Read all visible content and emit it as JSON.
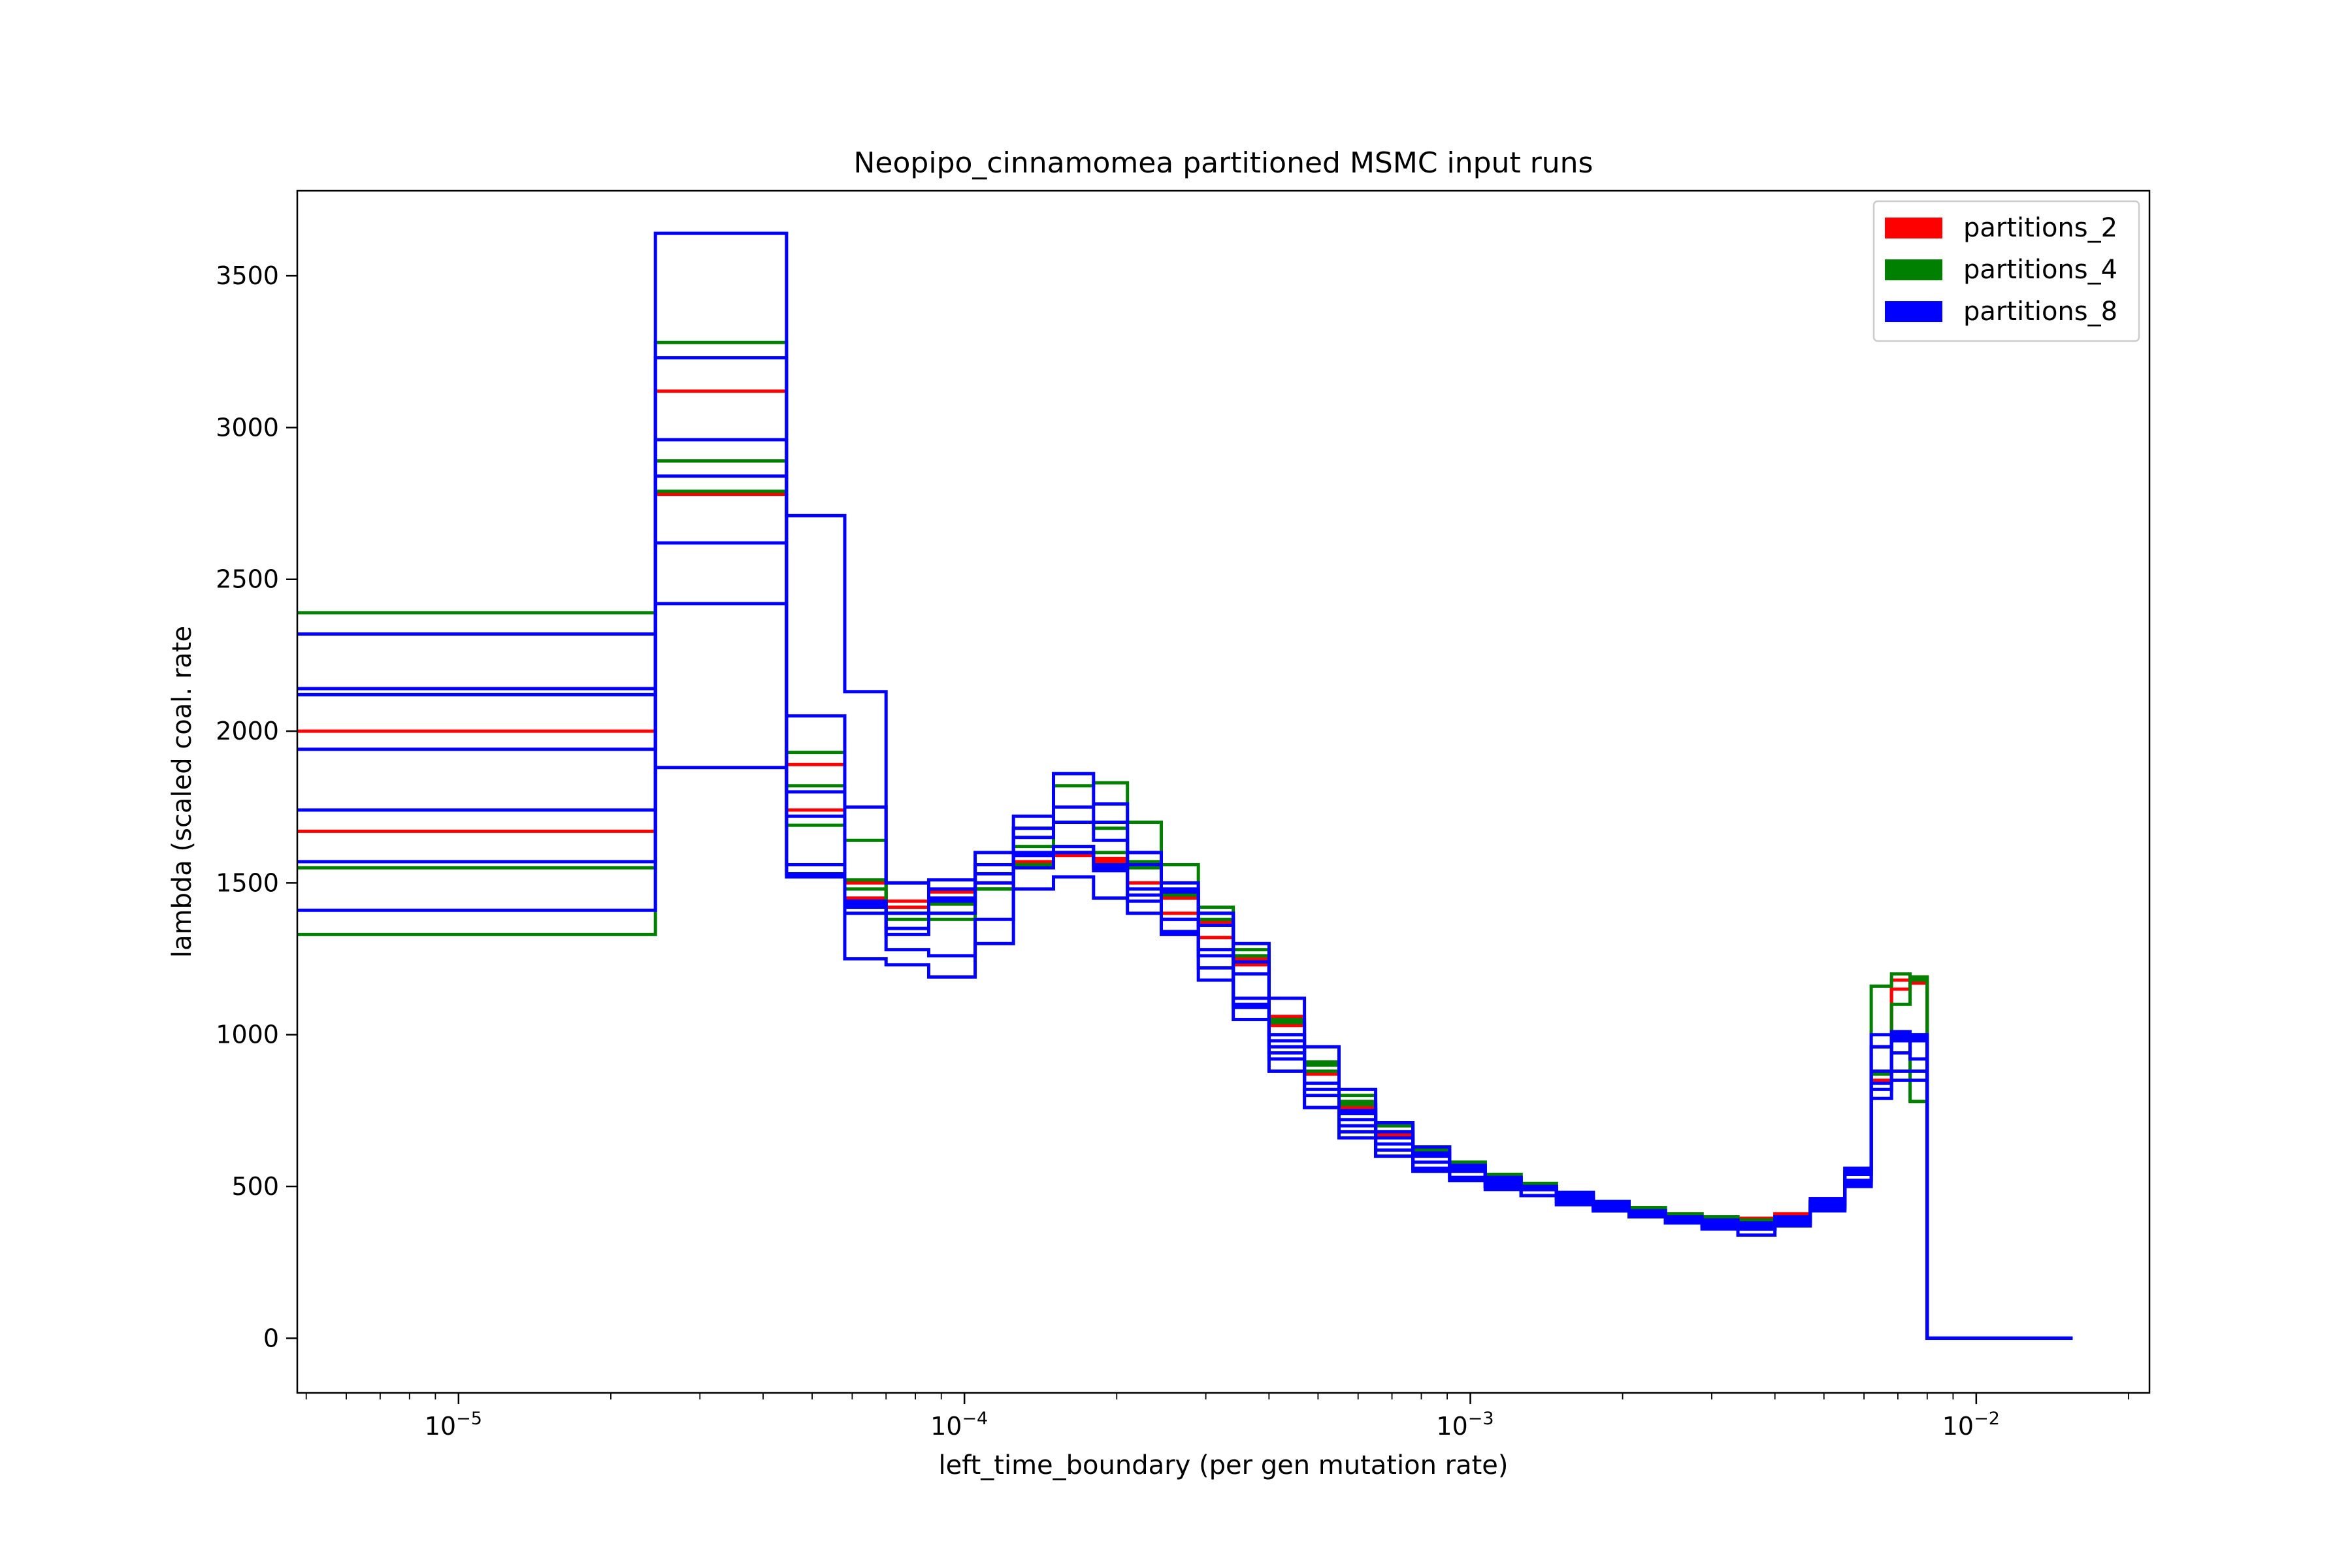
{
  "chart_data": {
    "type": "line",
    "step": "post",
    "title": "Neopipo_cinnamomea partitioned MSMC input runs",
    "xlabel": "left_time_boundary (per gen mutation rate)",
    "ylabel": "lambda (scaled coal. rate",
    "xscale": "log",
    "xlim": [
      4.8e-06,
      0.022
    ],
    "ylim": [
      -180,
      3780
    ],
    "yticks": [
      0,
      500,
      1000,
      1500,
      2000,
      2500,
      3000,
      3500
    ],
    "ytick_labels": [
      "0",
      "500",
      "1000",
      "1500",
      "2000",
      "2500",
      "3000",
      "3500"
    ],
    "xticks": [
      1e-05,
      0.0001,
      0.001,
      0.01
    ],
    "xtick_labels": [
      {
        "base": "10",
        "exp": "−5"
      },
      {
        "base": "10",
        "exp": "−4"
      },
      {
        "base": "10",
        "exp": "−3"
      },
      {
        "base": "10",
        "exp": "−2"
      }
    ],
    "grid": false,
    "legend_position": "top-right",
    "legend": [
      {
        "label": "partitions_2",
        "color": "#ff0000"
      },
      {
        "label": "partitions_4",
        "color": "#008000"
      },
      {
        "label": "partitions_8",
        "color": "#0000ff"
      }
    ],
    "x_end": 0.0155,
    "x_grid": [
      0,
      2.45e-05,
      4.45e-05,
      5.8e-05,
      7e-05,
      8.5e-05,
      0.000105,
      0.000125,
      0.00015,
      0.00018,
      0.00021,
      0.000245,
      0.00029,
      0.00034,
      0.0004,
      0.00047,
      0.00055,
      0.00065,
      0.00077,
      0.00091,
      0.00107,
      0.00126,
      0.00148,
      0.00175,
      0.00206,
      0.00243,
      0.00287,
      0.00338,
      0.004,
      0.0047,
      0.0055,
      0.0062,
      0.0068,
      0.0074,
      0.008
    ],
    "series": [
      {
        "group": "partitions_2",
        "color": "#ff0000",
        "values": [
          2000,
          3120,
          1890,
          1500,
          1440,
          1430,
          1500,
          1570,
          1590,
          1580,
          1560,
          1450,
          1370,
          1250,
          1060,
          880,
          770,
          670,
          610,
          570,
          530,
          500,
          470,
          440,
          420,
          410,
          400,
          395,
          410,
          460,
          560,
          880,
          1180,
          1190,
          0
        ]
      },
      {
        "group": "partitions_2",
        "color": "#ff0000",
        "values": [
          1670,
          2780,
          1740,
          1450,
          1420,
          1470,
          1560,
          1590,
          1600,
          1570,
          1500,
          1400,
          1320,
          1230,
          1030,
          870,
          760,
          670,
          600,
          560,
          520,
          490,
          460,
          440,
          420,
          405,
          395,
          390,
          410,
          450,
          540,
          850,
          1150,
          1170,
          0
        ]
      },
      {
        "group": "partitions_4",
        "color": "#008000",
        "values": [
          2390,
          3280,
          1930,
          1640,
          1400,
          1380,
          1480,
          1680,
          1820,
          1830,
          1700,
          1560,
          1420,
          1260,
          1040,
          900,
          780,
          700,
          630,
          580,
          540,
          510,
          480,
          450,
          430,
          410,
          400,
          390,
          400,
          450,
          560,
          1160,
          1200,
          1190,
          0
        ]
      },
      {
        "group": "partitions_4",
        "color": "#008000",
        "values": [
          1550,
          2890,
          1820,
          1510,
          1400,
          1430,
          1530,
          1620,
          1700,
          1680,
          1570,
          1460,
          1360,
          1240,
          1050,
          910,
          800,
          700,
          630,
          580,
          540,
          510,
          480,
          450,
          430,
          410,
          395,
          385,
          400,
          450,
          540,
          870,
          1100,
          1180,
          0
        ]
      },
      {
        "group": "partitions_4",
        "color": "#008000",
        "values": [
          1330,
          2790,
          1690,
          1480,
          1380,
          1400,
          1480,
          1560,
          1620,
          1600,
          1550,
          1460,
          1380,
          1280,
          1000,
          880,
          770,
          680,
          620,
          570,
          530,
          500,
          470,
          440,
          420,
          400,
          390,
          380,
          400,
          450,
          540,
          880,
          980,
          780,
          0
        ]
      },
      {
        "group": "partitions_8",
        "color": "#0000ff",
        "values": [
          2320,
          3640,
          1800,
          1440,
          1400,
          1510,
          1600,
          1720,
          1860,
          1760,
          1600,
          1480,
          1400,
          1300,
          1120,
          960,
          820,
          710,
          630,
          570,
          530,
          500,
          480,
          450,
          420,
          400,
          380,
          370,
          390,
          450,
          560,
          1000,
          1010,
          1000,
          0
        ]
      },
      {
        "group": "partitions_8",
        "color": "#0000ff",
        "values": [
          2140,
          3230,
          2710,
          2130,
          1500,
          1400,
          1500,
          1650,
          1700,
          1640,
          1560,
          1470,
          1360,
          1200,
          980,
          820,
          720,
          640,
          580,
          550,
          510,
          490,
          460,
          430,
          410,
          390,
          370,
          360,
          380,
          450,
          540,
          960,
          1000,
          1000,
          0
        ]
      },
      {
        "group": "partitions_8",
        "color": "#0000ff",
        "values": [
          2120,
          2960,
          2050,
          1750,
          1500,
          1450,
          1560,
          1680,
          1750,
          1700,
          1600,
          1500,
          1400,
          1240,
          1000,
          840,
          740,
          660,
          600,
          560,
          520,
          490,
          460,
          440,
          410,
          390,
          380,
          370,
          390,
          440,
          520,
          880,
          990,
          990,
          0
        ]
      },
      {
        "group": "partitions_8",
        "color": "#0000ff",
        "values": [
          1940,
          2620,
          1560,
          1250,
          1230,
          1190,
          1300,
          1480,
          1520,
          1450,
          1400,
          1380,
          1280,
          1100,
          920,
          800,
          700,
          620,
          560,
          520,
          500,
          470,
          440,
          420,
          400,
          380,
          360,
          340,
          370,
          420,
          510,
          820,
          940,
          980,
          0
        ]
      },
      {
        "group": "partitions_8",
        "color": "#0000ff",
        "values": [
          1740,
          2420,
          1720,
          1430,
          1280,
          1260,
          1380,
          1550,
          1600,
          1560,
          1440,
          1340,
          1220,
          1050,
          940,
          760,
          680,
          600,
          560,
          530,
          500,
          470,
          450,
          430,
          410,
          380,
          370,
          360,
          380,
          440,
          520,
          790,
          880,
          880,
          0
        ]
      },
      {
        "group": "partitions_8",
        "color": "#0000ff",
        "values": [
          1570,
          2840,
          1530,
          1420,
          1350,
          1480,
          1560,
          1600,
          1620,
          1550,
          1480,
          1380,
          1260,
          1120,
          960,
          840,
          750,
          680,
          610,
          560,
          520,
          490,
          470,
          450,
          420,
          400,
          390,
          380,
          400,
          460,
          550,
          960,
          980,
          920,
          0
        ]
      },
      {
        "group": "partitions_8",
        "color": "#0000ff",
        "values": [
          1410,
          1880,
          1520,
          1400,
          1330,
          1440,
          1530,
          1590,
          1600,
          1540,
          1460,
          1330,
          1180,
          1090,
          880,
          760,
          660,
          600,
          550,
          520,
          490,
          470,
          440,
          420,
          400,
          380,
          370,
          360,
          380,
          430,
          500,
          840,
          850,
          850,
          0
        ]
      }
    ]
  }
}
